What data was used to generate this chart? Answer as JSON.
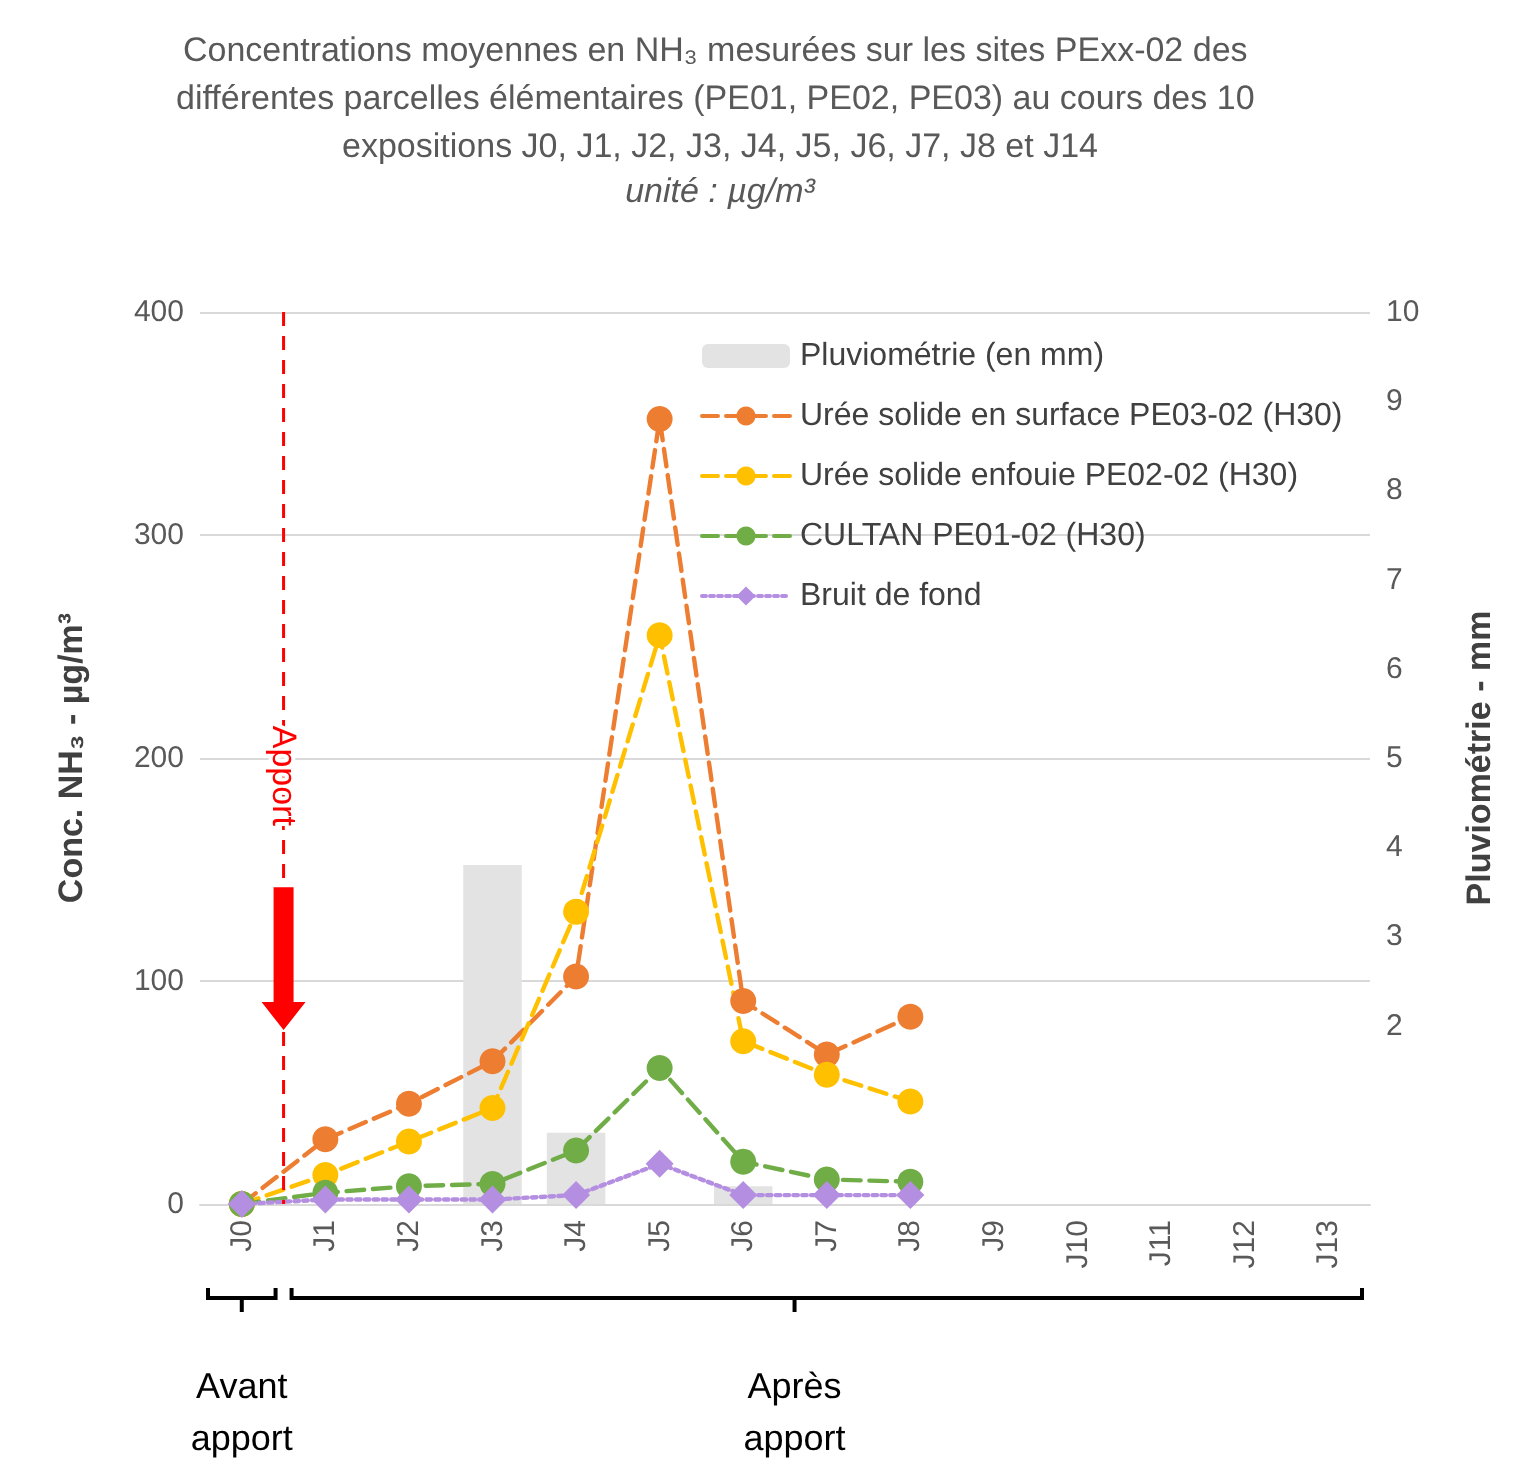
{
  "chart_data": {
    "type": "line",
    "title": "Concentrations moyennes en NH₃ mesurées sur les sites PExx-02 des différentes parcelles élémentaires (PE01, PE02, PE03) au cours des 10 expositions J0, J1, J2, J3, J4, J5, J6, J7, J8 et J14",
    "subtitle": "unité : µg/m³",
    "ylabel": "Conc. NH₃ - µg/m³",
    "y2label": "Pluviométrie - mm",
    "categories": [
      "J0",
      "J1",
      "J2",
      "J3",
      "J4",
      "J5",
      "J6",
      "J7",
      "J8",
      "J9",
      "J10",
      "J11",
      "J12",
      "J13"
    ],
    "series": [
      {
        "name": "Pluviométrie (en mm)",
        "type": "bar",
        "axis": "y2",
        "color": "#e3e3e3",
        "values": [
          null,
          null,
          null,
          3.8,
          0.8,
          null,
          0.2,
          null,
          null,
          null,
          null,
          null,
          null,
          null
        ]
      },
      {
        "name": "Urée solide en surface PE03-02 (H30)",
        "color": "#ed7d31",
        "marker": "circle",
        "line_style": "dashed",
        "values": [
          0,
          29,
          45,
          64,
          102,
          352,
          91,
          67,
          84,
          null,
          null,
          null,
          null,
          null
        ]
      },
      {
        "name": "Urée solide enfouie PE02-02 (H30)",
        "color": "#ffc000",
        "marker": "circle",
        "line_style": "dashed",
        "values": [
          0,
          13,
          28,
          43,
          131,
          255,
          73,
          58,
          46,
          null,
          null,
          null,
          null,
          null
        ]
      },
      {
        "name": "CULTAN PE01-02 (H30)",
        "color": "#70ad47",
        "marker": "circle",
        "line_style": "dashed",
        "values": [
          0,
          5,
          8,
          9,
          24,
          61,
          19,
          11,
          10,
          null,
          null,
          null,
          null,
          null
        ]
      },
      {
        "name": "Bruit de fond",
        "color": "#b48ee0",
        "marker": "diamond",
        "line_style": "dotted",
        "values": [
          0,
          2,
          2,
          2,
          4,
          18,
          4,
          4,
          4,
          null,
          null,
          null,
          null,
          null
        ]
      }
    ],
    "ylim": [
      0,
      400
    ],
    "yticks": [
      0,
      100,
      200,
      300,
      400
    ],
    "y2lim": [
      0,
      10
    ],
    "y2ticks": [
      2,
      3,
      4,
      5,
      6,
      7,
      8,
      9,
      10
    ],
    "ref_lines": [
      {
        "axis": "x",
        "value": "J0",
        "label": "Apport",
        "color": "#ff0000",
        "line_style": "dashed"
      }
    ],
    "annotations": [
      "Avant apport",
      "Après apport"
    ],
    "grid": "y",
    "legend": "top right"
  }
}
